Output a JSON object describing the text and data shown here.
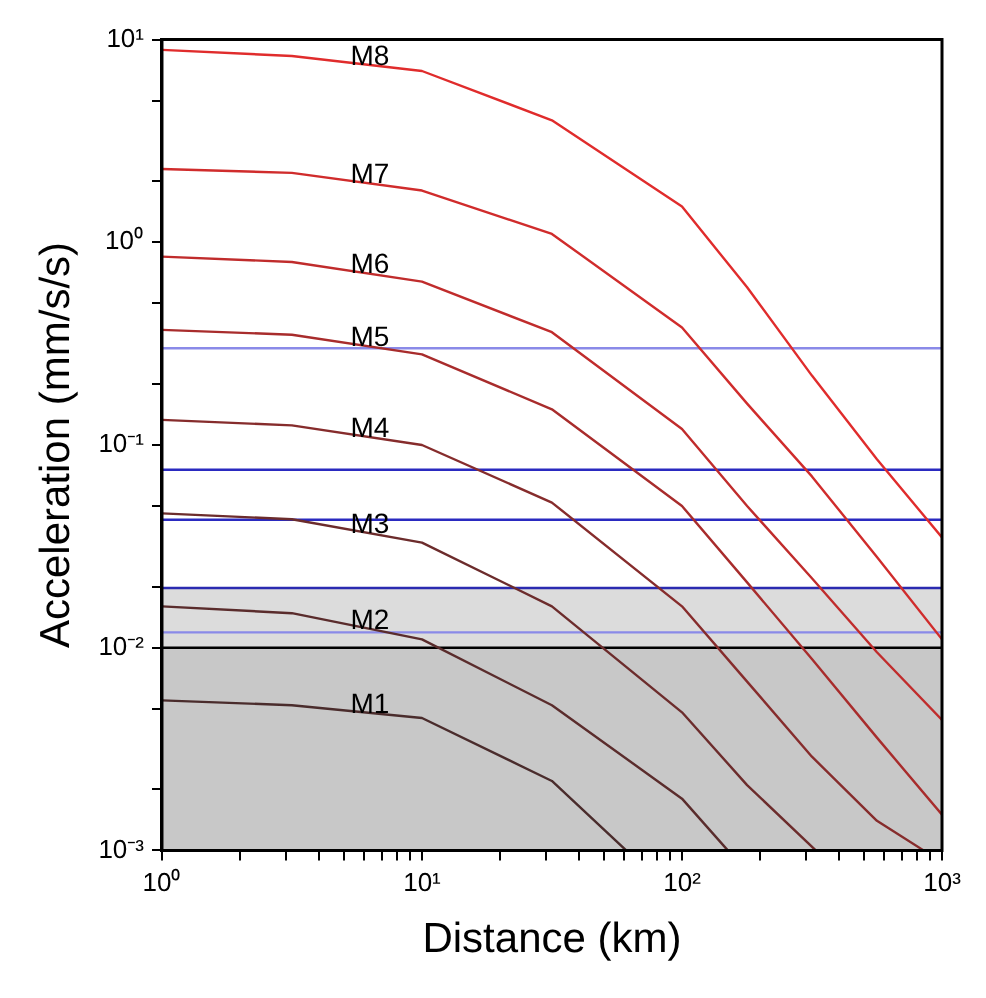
{
  "chart_data": {
    "type": "line",
    "xlabel": "Distance (km)",
    "ylabel": "Acceleration (mm/s/s)",
    "log": "xy",
    "grid": false,
    "legend": false,
    "marker": "none",
    "line_style": "solid",
    "xlim": [
      1,
      1000
    ],
    "ylim": [
      0.001,
      10
    ],
    "xticks": [
      {
        "value": 1,
        "label": "10⁰"
      },
      {
        "value": 2,
        "label": null
      },
      {
        "value": 3,
        "label": null
      },
      {
        "value": 4,
        "label": null
      },
      {
        "value": 5,
        "label": null
      },
      {
        "value": 6,
        "label": null
      },
      {
        "value": 7,
        "label": null
      },
      {
        "value": 8,
        "label": null
      },
      {
        "value": 9,
        "label": null
      },
      {
        "value": 10,
        "label": "10¹"
      },
      {
        "value": 20,
        "label": null
      },
      {
        "value": 30,
        "label": null
      },
      {
        "value": 40,
        "label": null
      },
      {
        "value": 50,
        "label": null
      },
      {
        "value": 60,
        "label": null
      },
      {
        "value": 70,
        "label": null
      },
      {
        "value": 80,
        "label": null
      },
      {
        "value": 90,
        "label": null
      },
      {
        "value": 100,
        "label": "10²"
      },
      {
        "value": 200,
        "label": null
      },
      {
        "value": 300,
        "label": null
      },
      {
        "value": 400,
        "label": null
      },
      {
        "value": 500,
        "label": null
      },
      {
        "value": 600,
        "label": null
      },
      {
        "value": 700,
        "label": null
      },
      {
        "value": 800,
        "label": null
      },
      {
        "value": 900,
        "label": null
      },
      {
        "value": 1000,
        "label": "10³"
      }
    ],
    "yticks": [
      {
        "value": 0.001,
        "label": "10⁻³"
      },
      {
        "value": 0.002,
        "label": null
      },
      {
        "value": 0.005,
        "label": null
      },
      {
        "value": 0.01,
        "label": "10⁻²"
      },
      {
        "value": 0.02,
        "label": null
      },
      {
        "value": 0.05,
        "label": null
      },
      {
        "value": 0.1,
        "label": "10⁻¹"
      },
      {
        "value": 0.2,
        "label": null
      },
      {
        "value": 0.5,
        "label": null
      },
      {
        "value": 1,
        "label": "10⁰"
      },
      {
        "value": 2,
        "label": null
      },
      {
        "value": 5,
        "label": null
      },
      {
        "value": 10,
        "label": "10¹"
      }
    ],
    "bands": [
      {
        "axis": "y",
        "from": 0.001,
        "to": 0.01,
        "color": "#c8c8c8"
      },
      {
        "axis": "y",
        "from": 0.01,
        "to": 0.0197,
        "color": "#dcdcdc"
      }
    ],
    "ref_lines": [
      {
        "axis": "y",
        "value": 0.3,
        "color": "#8a8ae8"
      },
      {
        "axis": "y",
        "value": 0.0755,
        "color": "#2a2ac0"
      },
      {
        "axis": "y",
        "value": 0.0428,
        "color": "#2a2ac0"
      },
      {
        "axis": "y",
        "value": 0.0197,
        "color": "#2a2ab0"
      },
      {
        "axis": "y",
        "value": 0.0119,
        "color": "#8a8ae8"
      },
      {
        "axis": "y",
        "value": 0.01,
        "color": "#000000"
      }
    ],
    "series": [
      {
        "name": "M1",
        "color": "#4a2c2c",
        "x": [
          1,
          3.16,
          10,
          31.6,
          61
        ],
        "values": [
          0.0055,
          0.0052,
          0.0045,
          0.0022,
          0.001
        ]
      },
      {
        "name": "M2",
        "color": "#5a2c2c",
        "x": [
          1,
          3.16,
          10,
          31.6,
          100,
          150
        ],
        "values": [
          0.016,
          0.0148,
          0.011,
          0.0052,
          0.0018,
          0.001
        ]
      },
      {
        "name": "M3",
        "color": "#6c2c2c",
        "x": [
          1,
          3.16,
          10,
          31.6,
          100,
          178,
          327
        ],
        "values": [
          0.046,
          0.043,
          0.033,
          0.016,
          0.0048,
          0.0021,
          0.001
        ]
      },
      {
        "name": "M4",
        "color": "#862c2c",
        "x": [
          1,
          3.16,
          10,
          31.6,
          100,
          178,
          316,
          562,
          850
        ],
        "values": [
          0.133,
          0.125,
          0.1,
          0.052,
          0.016,
          0.0068,
          0.0029,
          0.0014,
          0.001
        ]
      },
      {
        "name": "M5",
        "color": "#a82c2c",
        "x": [
          1,
          3.16,
          10,
          31.6,
          100,
          178,
          316,
          562,
          1000
        ],
        "values": [
          0.37,
          0.35,
          0.28,
          0.15,
          0.05,
          0.021,
          0.0088,
          0.0036,
          0.0015
        ]
      },
      {
        "name": "M6",
        "color": "#c02c2c",
        "x": [
          1,
          3.16,
          10,
          31.6,
          100,
          178,
          316,
          562,
          1000
        ],
        "values": [
          0.85,
          0.8,
          0.64,
          0.36,
          0.12,
          0.05,
          0.022,
          0.0095,
          0.0044
        ]
      },
      {
        "name": "M7",
        "color": "#d02c2c",
        "x": [
          1,
          3.16,
          10,
          31.6,
          100,
          178,
          316,
          562,
          1000
        ],
        "values": [
          2.3,
          2.2,
          1.8,
          1.1,
          0.38,
          0.16,
          0.07,
          0.028,
          0.011
        ]
      },
      {
        "name": "M8",
        "color": "#e02c2c",
        "x": [
          1,
          3.16,
          10,
          31.6,
          100,
          178,
          316,
          562,
          1000
        ],
        "values": [
          8.9,
          8.3,
          7.0,
          4.0,
          1.5,
          0.6,
          0.22,
          0.085,
          0.035
        ]
      }
    ]
  }
}
